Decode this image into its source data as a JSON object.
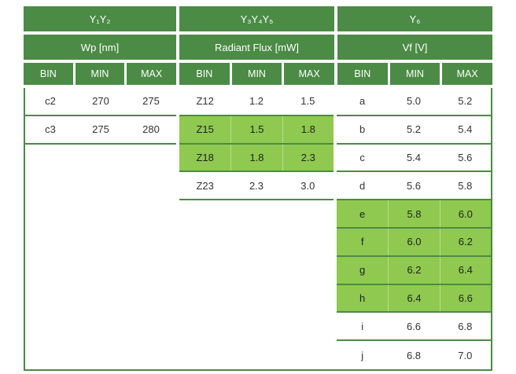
{
  "table": {
    "groups": [
      {
        "title": "Y₁Y₂",
        "unit": "Wp [nm]",
        "cols": [
          "BIN",
          "MIN",
          "MAX"
        ]
      },
      {
        "title": "Y₃Y₄Y₅",
        "unit": "Radiant Flux [mW]",
        "cols": [
          "BIN",
          "MIN",
          "MAX"
        ]
      },
      {
        "title": "Y₆",
        "unit": "Vf [V]",
        "cols": [
          "BIN",
          "MIN",
          "MAX"
        ]
      }
    ],
    "wp_rows": [
      {
        "bin": "c2",
        "min": "270",
        "max": "275",
        "highlight": false
      },
      {
        "bin": "c3",
        "min": "275",
        "max": "280",
        "highlight": false
      }
    ],
    "flux_rows": [
      {
        "bin": "Z12",
        "min": "1.2",
        "max": "1.5",
        "highlight": false
      },
      {
        "bin": "Z15",
        "min": "1.5",
        "max": "1.8",
        "highlight": true
      },
      {
        "bin": "Z18",
        "min": "1.8",
        "max": "2.3",
        "highlight": true
      },
      {
        "bin": "Z23",
        "min": "2.3",
        "max": "3.0",
        "highlight": false
      }
    ],
    "vf_rows": [
      {
        "bin": "a",
        "min": "5.0",
        "max": "5.2",
        "highlight": false
      },
      {
        "bin": "b",
        "min": "5.2",
        "max": "5.4",
        "highlight": false
      },
      {
        "bin": "c",
        "min": "5.4",
        "max": "5.6",
        "highlight": false
      },
      {
        "bin": "d",
        "min": "5.6",
        "max": "5.8",
        "highlight": false
      },
      {
        "bin": "e",
        "min": "5.8",
        "max": "6.0",
        "highlight": true
      },
      {
        "bin": "f",
        "min": "6.0",
        "max": "6.2",
        "highlight": true
      },
      {
        "bin": "g",
        "min": "6.2",
        "max": "6.4",
        "highlight": true
      },
      {
        "bin": "h",
        "min": "6.4",
        "max": "6.6",
        "highlight": true
      },
      {
        "bin": "i",
        "min": "6.6",
        "max": "6.8",
        "highlight": false
      },
      {
        "bin": "j",
        "min": "6.8",
        "max": "7.0",
        "highlight": false
      }
    ],
    "colors": {
      "header_green": "#4b8b45",
      "highlight_green": "#8fc94f",
      "border_green": "#4b8b45",
      "text": "#333333"
    }
  }
}
